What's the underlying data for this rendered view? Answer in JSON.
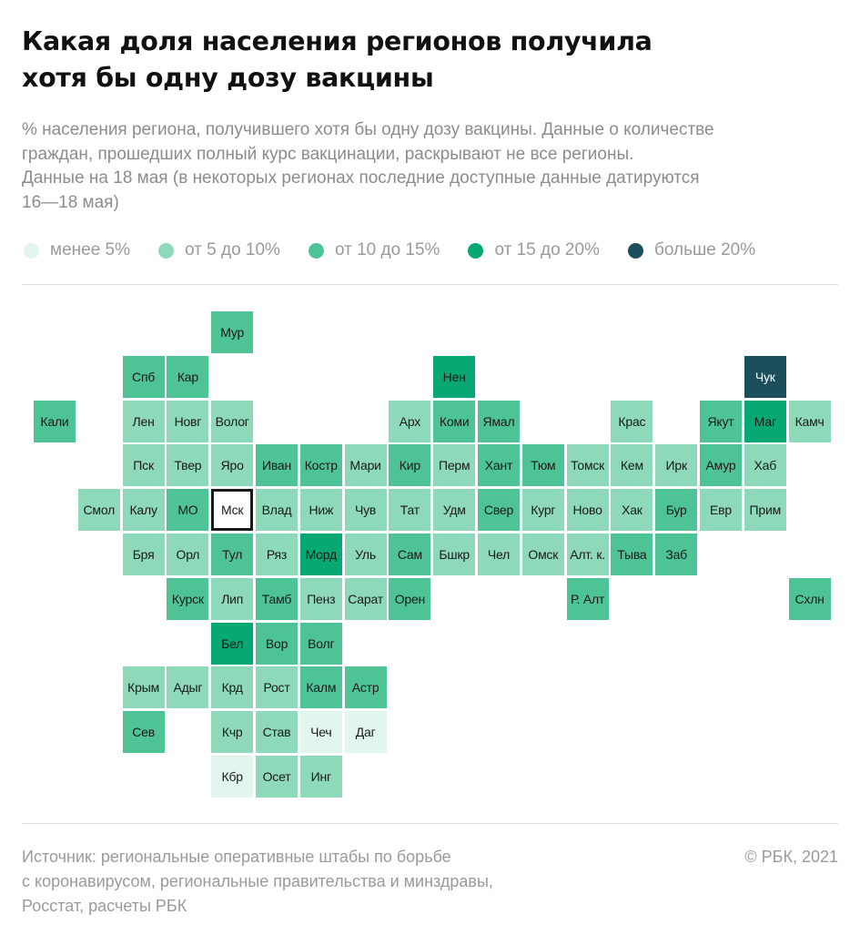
{
  "title": [
    "Какая доля населения регионов получила",
    "хотя бы одну дозу вакцины"
  ],
  "subtitle": [
    "% населения региона, получившего хотя бы одну дозу вакцины. Данные о количестве",
    "граждан, прошедших полный курс вакцинации, раскрывают не все регионы.",
    "Данные на 18 мая (в некоторых регионах последние доступные данные датируются",
    "16—18 мая)"
  ],
  "colors": {
    "lt5": "#e3f6ed",
    "5to10": "#8dd9ba",
    "10to15": "#4ec496",
    "15to20": "#08a874",
    "gt20": "#1d4e5b"
  },
  "chart_data": {
    "type": "heatmap",
    "legend": [
      {
        "key": "lt5",
        "label": "менее 5%"
      },
      {
        "key": "5to10",
        "label": "от 5 до 10%"
      },
      {
        "key": "10to15",
        "label": "от 10 до 15%"
      },
      {
        "key": "15to20",
        "label": "от 15 до 20%"
      },
      {
        "key": "gt20",
        "label": "больше 20%"
      }
    ],
    "regions": [
      {
        "name": "Мур",
        "col": 4,
        "row": 0,
        "bin": "10to15"
      },
      {
        "name": "Спб",
        "col": 2,
        "row": 1,
        "bin": "10to15"
      },
      {
        "name": "Кар",
        "col": 3,
        "row": 1,
        "bin": "10to15"
      },
      {
        "name": "Нен",
        "col": 9,
        "row": 1,
        "bin": "15to20"
      },
      {
        "name": "Чук",
        "col": 16,
        "row": 1,
        "bin": "gt20"
      },
      {
        "name": "Кали",
        "col": 0,
        "row": 2,
        "bin": "10to15"
      },
      {
        "name": "Лен",
        "col": 2,
        "row": 2,
        "bin": "5to10"
      },
      {
        "name": "Новг",
        "col": 3,
        "row": 2,
        "bin": "5to10"
      },
      {
        "name": "Волог",
        "col": 4,
        "row": 2,
        "bin": "5to10"
      },
      {
        "name": "Арх",
        "col": 8,
        "row": 2,
        "bin": "5to10"
      },
      {
        "name": "Коми",
        "col": 9,
        "row": 2,
        "bin": "10to15"
      },
      {
        "name": "Ямал",
        "col": 10,
        "row": 2,
        "bin": "10to15"
      },
      {
        "name": "Крас",
        "col": 13,
        "row": 2,
        "bin": "5to10"
      },
      {
        "name": "Якут",
        "col": 15,
        "row": 2,
        "bin": "10to15"
      },
      {
        "name": "Маг",
        "col": 16,
        "row": 2,
        "bin": "15to20"
      },
      {
        "name": "Камч",
        "col": 17,
        "row": 2,
        "bin": "5to10"
      },
      {
        "name": "Пск",
        "col": 2,
        "row": 3,
        "bin": "5to10"
      },
      {
        "name": "Твер",
        "col": 3,
        "row": 3,
        "bin": "5to10"
      },
      {
        "name": "Яро",
        "col": 4,
        "row": 3,
        "bin": "5to10"
      },
      {
        "name": "Иван",
        "col": 5,
        "row": 3,
        "bin": "10to15"
      },
      {
        "name": "Костр",
        "col": 6,
        "row": 3,
        "bin": "10to15"
      },
      {
        "name": "Мари",
        "col": 7,
        "row": 3,
        "bin": "5to10"
      },
      {
        "name": "Кир",
        "col": 8,
        "row": 3,
        "bin": "10to15"
      },
      {
        "name": "Перм",
        "col": 9,
        "row": 3,
        "bin": "5to10"
      },
      {
        "name": "Хант",
        "col": 10,
        "row": 3,
        "bin": "10to15"
      },
      {
        "name": "Тюм",
        "col": 11,
        "row": 3,
        "bin": "10to15"
      },
      {
        "name": "Томск",
        "col": 12,
        "row": 3,
        "bin": "5to10"
      },
      {
        "name": "Кем",
        "col": 13,
        "row": 3,
        "bin": "5to10"
      },
      {
        "name": "Ирк",
        "col": 14,
        "row": 3,
        "bin": "5to10"
      },
      {
        "name": "Амур",
        "col": 15,
        "row": 3,
        "bin": "10to15"
      },
      {
        "name": "Хаб",
        "col": 16,
        "row": 3,
        "bin": "5to10"
      },
      {
        "name": "Смол",
        "col": 1,
        "row": 4,
        "bin": "5to10"
      },
      {
        "name": "Калу",
        "col": 2,
        "row": 4,
        "bin": "5to10"
      },
      {
        "name": "МО",
        "col": 3,
        "row": 4,
        "bin": "10to15"
      },
      {
        "name": "Мск",
        "col": 4,
        "row": 4,
        "bin": "10to15",
        "selected": true
      },
      {
        "name": "Влад",
        "col": 5,
        "row": 4,
        "bin": "5to10"
      },
      {
        "name": "Ниж",
        "col": 6,
        "row": 4,
        "bin": "5to10"
      },
      {
        "name": "Чув",
        "col": 7,
        "row": 4,
        "bin": "5to10"
      },
      {
        "name": "Тат",
        "col": 8,
        "row": 4,
        "bin": "5to10"
      },
      {
        "name": "Удм",
        "col": 9,
        "row": 4,
        "bin": "5to10"
      },
      {
        "name": "Свер",
        "col": 10,
        "row": 4,
        "bin": "10to15"
      },
      {
        "name": "Кург",
        "col": 11,
        "row": 4,
        "bin": "5to10"
      },
      {
        "name": "Ново",
        "col": 12,
        "row": 4,
        "bin": "5to10"
      },
      {
        "name": "Хак",
        "col": 13,
        "row": 4,
        "bin": "5to10"
      },
      {
        "name": "Бур",
        "col": 14,
        "row": 4,
        "bin": "10to15"
      },
      {
        "name": "Евр",
        "col": 15,
        "row": 4,
        "bin": "5to10"
      },
      {
        "name": "Прим",
        "col": 16,
        "row": 4,
        "bin": "5to10"
      },
      {
        "name": "Бря",
        "col": 2,
        "row": 5,
        "bin": "5to10"
      },
      {
        "name": "Орл",
        "col": 3,
        "row": 5,
        "bin": "5to10"
      },
      {
        "name": "Тул",
        "col": 4,
        "row": 5,
        "bin": "10to15"
      },
      {
        "name": "Ряз",
        "col": 5,
        "row": 5,
        "bin": "5to10"
      },
      {
        "name": "Морд",
        "col": 6,
        "row": 5,
        "bin": "15to20"
      },
      {
        "name": "Уль",
        "col": 7,
        "row": 5,
        "bin": "5to10"
      },
      {
        "name": "Сам",
        "col": 8,
        "row": 5,
        "bin": "10to15"
      },
      {
        "name": "Бшкр",
        "col": 9,
        "row": 5,
        "bin": "5to10"
      },
      {
        "name": "Чел",
        "col": 10,
        "row": 5,
        "bin": "5to10"
      },
      {
        "name": "Омск",
        "col": 11,
        "row": 5,
        "bin": "5to10"
      },
      {
        "name": "Алт. к.",
        "col": 12,
        "row": 5,
        "bin": "5to10"
      },
      {
        "name": "Тыва",
        "col": 13,
        "row": 5,
        "bin": "10to15"
      },
      {
        "name": "Заб",
        "col": 14,
        "row": 5,
        "bin": "10to15"
      },
      {
        "name": "Курск",
        "col": 3,
        "row": 6,
        "bin": "10to15"
      },
      {
        "name": "Лип",
        "col": 4,
        "row": 6,
        "bin": "5to10"
      },
      {
        "name": "Тамб",
        "col": 5,
        "row": 6,
        "bin": "10to15"
      },
      {
        "name": "Пенз",
        "col": 6,
        "row": 6,
        "bin": "5to10"
      },
      {
        "name": "Сарат",
        "col": 7,
        "row": 6,
        "bin": "5to10"
      },
      {
        "name": "Орен",
        "col": 8,
        "row": 6,
        "bin": "10to15"
      },
      {
        "name": "Р. Алт",
        "col": 12,
        "row": 6,
        "bin": "10to15"
      },
      {
        "name": "Схлн",
        "col": 17,
        "row": 6,
        "bin": "10to15"
      },
      {
        "name": "Бел",
        "col": 4,
        "row": 7,
        "bin": "15to20"
      },
      {
        "name": "Вор",
        "col": 5,
        "row": 7,
        "bin": "10to15"
      },
      {
        "name": "Волг",
        "col": 6,
        "row": 7,
        "bin": "10to15"
      },
      {
        "name": "Крым",
        "col": 2,
        "row": 8,
        "bin": "5to10"
      },
      {
        "name": "Адыг",
        "col": 3,
        "row": 8,
        "bin": "5to10"
      },
      {
        "name": "Крд",
        "col": 4,
        "row": 8,
        "bin": "5to10"
      },
      {
        "name": "Рост",
        "col": 5,
        "row": 8,
        "bin": "5to10"
      },
      {
        "name": "Калм",
        "col": 6,
        "row": 8,
        "bin": "10to15"
      },
      {
        "name": "Астр",
        "col": 7,
        "row": 8,
        "bin": "10to15"
      },
      {
        "name": "Сев",
        "col": 2,
        "row": 9,
        "bin": "10to15"
      },
      {
        "name": "Кчр",
        "col": 4,
        "row": 9,
        "bin": "5to10"
      },
      {
        "name": "Став",
        "col": 5,
        "row": 9,
        "bin": "5to10"
      },
      {
        "name": "Чеч",
        "col": 6,
        "row": 9,
        "bin": "lt5"
      },
      {
        "name": "Даг",
        "col": 7,
        "row": 9,
        "bin": "lt5"
      },
      {
        "name": "Кбр",
        "col": 4,
        "row": 10,
        "bin": "lt5"
      },
      {
        "name": "Осет",
        "col": 5,
        "row": 10,
        "bin": "5to10"
      },
      {
        "name": "Инг",
        "col": 6,
        "row": 10,
        "bin": "5to10"
      }
    ]
  },
  "source": [
    "Источник:  региональные оперативные штабы по борьбе",
    "с коронавирусом, региональные правительства и минздравы,",
    "Росстат, расчеты РБК"
  ],
  "copyright": "© РБК, 2021"
}
